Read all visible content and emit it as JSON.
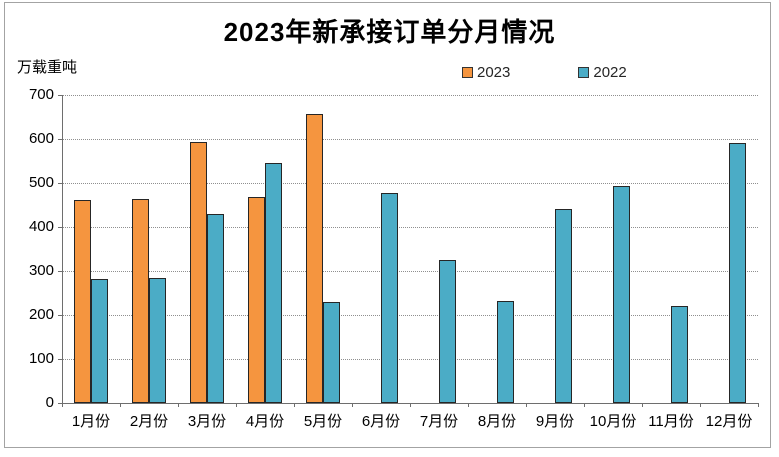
{
  "window": {
    "background": "#ffffff",
    "frame_border_color": "#a3a3a3"
  },
  "chart_data": {
    "type": "bar",
    "title": "2023年新承接订单分月情况",
    "ylabel_unit": "万载重吨",
    "xlabel": "",
    "categories": [
      "1月份",
      "2月份",
      "3月份",
      "4月份",
      "5月份",
      "6月份",
      "7月份",
      "8月份",
      "9月份",
      "10月份",
      "11月份",
      "12月份"
    ],
    "series": [
      {
        "name": "2023",
        "color": "#F5953F",
        "values": [
          461,
          463,
          593,
          468,
          657,
          null,
          null,
          null,
          null,
          null,
          null,
          null
        ]
      },
      {
        "name": "2022",
        "color": "#4BACC6",
        "values": [
          282,
          284,
          430,
          546,
          230,
          477,
          326,
          232,
          441,
          494,
          221,
          591
        ]
      }
    ],
    "ylim": [
      0,
      700
    ],
    "yticks": [
      0,
      100,
      200,
      300,
      400,
      500,
      600,
      700
    ],
    "grid": "horizontal-dotted",
    "legend_position": "top-center",
    "bar_border_color": "#262626",
    "axis_color": "#6e6e6e",
    "gridline_color": "#8f8f8f"
  }
}
